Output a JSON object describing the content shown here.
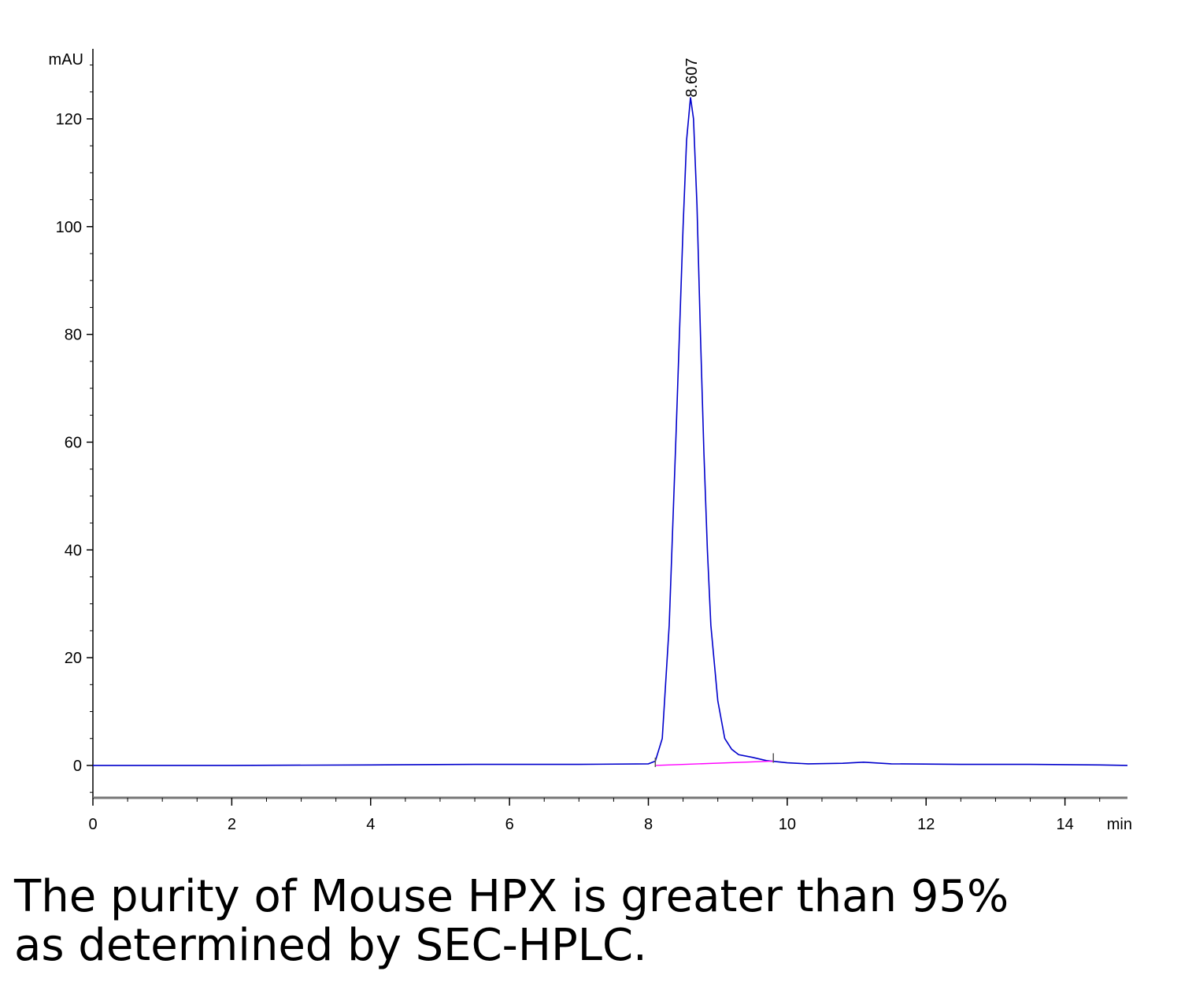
{
  "chart_data": {
    "type": "line",
    "title": "",
    "xlabel": "min",
    "ylabel": "mAU",
    "xlim": [
      0,
      14.9
    ],
    "ylim": [
      -6,
      133
    ],
    "x_ticks": [
      0,
      2,
      4,
      6,
      8,
      10,
      12,
      14
    ],
    "y_ticks": [
      0,
      20,
      40,
      60,
      80,
      100,
      120
    ],
    "grid": false,
    "peak_annotations": [
      {
        "label": "8.607",
        "x": 8.607,
        "y": 124
      }
    ],
    "series": [
      {
        "color": "#0000cc",
        "x": [
          0,
          2,
          4,
          5.5,
          7,
          8.0,
          8.1,
          8.2,
          8.3,
          8.4,
          8.5,
          8.55,
          8.607,
          8.65,
          8.7,
          8.75,
          8.8,
          8.85,
          8.9,
          9.0,
          9.1,
          9.2,
          9.3,
          9.5,
          9.7,
          9.85,
          10.0,
          10.3,
          10.8,
          11.1,
          11.5,
          12.5,
          13.5,
          14.5,
          14.9
        ],
        "y": [
          0,
          0,
          0.1,
          0.2,
          0.2,
          0.3,
          0.8,
          5,
          26,
          62,
          100,
          116,
          124,
          120,
          104,
          80,
          58,
          40,
          26,
          12,
          5,
          3,
          2,
          1.5,
          0.9,
          0.7,
          0.5,
          0.3,
          0.4,
          0.6,
          0.3,
          0.2,
          0.2,
          0.1,
          0
        ]
      },
      {
        "color": "#ff00ff",
        "x": [
          8.1,
          9.8
        ],
        "y": [
          0,
          0.8
        ]
      }
    ]
  },
  "caption": {
    "line1": "The purity of Mouse HPX is greater than 95%",
    "line2": "as determined by SEC-HPLC."
  }
}
